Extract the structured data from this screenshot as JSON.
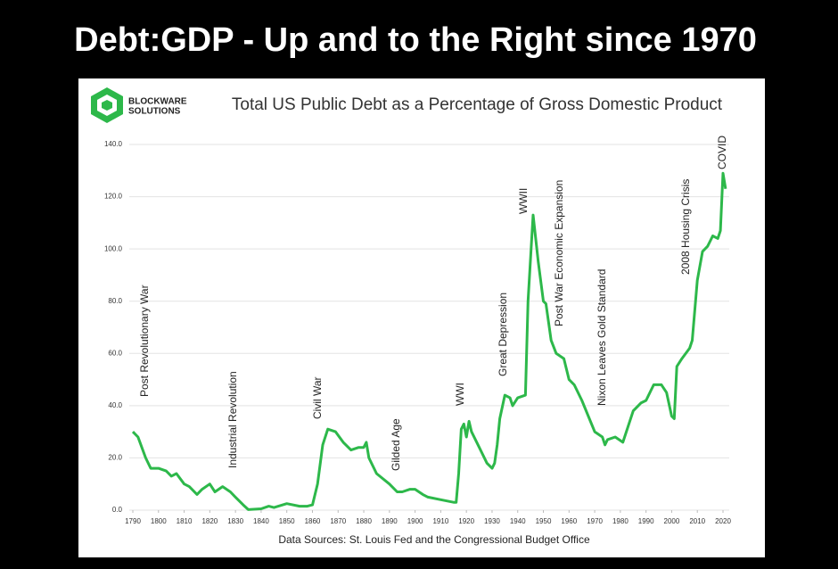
{
  "slide_title": "Debt:GDP - Up and to the Right since 1970",
  "logo": {
    "line1": "BLOCKWARE",
    "line2": "SOLUTIONS"
  },
  "chart_data": {
    "type": "line",
    "title": "Total US Public Debt as a Percentage of Gross Domestic Product",
    "source": "Data Sources: St. Louis Fed and the Congressional Budget Office",
    "color": "#2db84a",
    "grid": true,
    "x": [
      1790,
      1792,
      1795,
      1797,
      1800,
      1803,
      1805,
      1807,
      1810,
      1812,
      1815,
      1817,
      1820,
      1822,
      1825,
      1828,
      1830,
      1833,
      1835,
      1840,
      1843,
      1845,
      1850,
      1855,
      1858,
      1860,
      1862,
      1864,
      1866,
      1869,
      1872,
      1875,
      1878,
      1880,
      1881,
      1882,
      1885,
      1890,
      1893,
      1895,
      1898,
      1900,
      1903,
      1905,
      1910,
      1915,
      1916,
      1917,
      1918,
      1919,
      1920,
      1921,
      1922,
      1925,
      1928,
      1930,
      1931,
      1932,
      1933,
      1935,
      1937,
      1938,
      1940,
      1943,
      1944,
      1946,
      1948,
      1950,
      1951,
      1953,
      1955,
      1958,
      1960,
      1962,
      1965,
      1970,
      1973,
      1974,
      1975,
      1978,
      1981,
      1985,
      1988,
      1990,
      1993,
      1996,
      1998,
      2000,
      2001,
      2002,
      2004,
      2007,
      2008,
      2010,
      2012,
      2014,
      2016,
      2018,
      2019,
      2020,
      2021
    ],
    "values": [
      30,
      28,
      20,
      16,
      16,
      15,
      13,
      14,
      10,
      9,
      6,
      8,
      10,
      7,
      9,
      7,
      5,
      2,
      0.2,
      0.5,
      1.5,
      1,
      2.5,
      1.5,
      1.5,
      2,
      10,
      25,
      31,
      30,
      26,
      23,
      24,
      24,
      26,
      20,
      14,
      10,
      7,
      7,
      8,
      8,
      6,
      5,
      4,
      3,
      3,
      14,
      31,
      33,
      28,
      34,
      30,
      24,
      18,
      16,
      18,
      25,
      35,
      44,
      43,
      40,
      43,
      44,
      80,
      113,
      95,
      80,
      79,
      65,
      60,
      58,
      50,
      48,
      42,
      30,
      28,
      25,
      27,
      28,
      26,
      38,
      41,
      42,
      48,
      48,
      45,
      36,
      35,
      55,
      58,
      62,
      65,
      88,
      99,
      101,
      105,
      104,
      107,
      129,
      123
    ],
    "xlim": [
      1790,
      2020
    ],
    "xticks": [
      1790,
      1800,
      1810,
      1820,
      1830,
      1840,
      1850,
      1860,
      1870,
      1880,
      1890,
      1900,
      1910,
      1920,
      1930,
      1940,
      1950,
      1960,
      1970,
      1980,
      1990,
      2000,
      2010,
      2020
    ],
    "ylim": [
      0,
      140
    ],
    "yticks": [
      {
        "value": 0,
        "label": "0.0"
      },
      {
        "value": 20,
        "label": "20.0"
      },
      {
        "value": 40,
        "label": "40.0"
      },
      {
        "value": 60,
        "label": "60.0"
      },
      {
        "value": 80,
        "label": "80.0"
      },
      {
        "value": 100,
        "label": "100.0"
      },
      {
        "value": 120,
        "label": "120.0"
      },
      {
        "value": 140,
        "label": "140.0"
      }
    ],
    "annotations": [
      "Post Revolutionary War",
      "Industrial Revolution",
      "Civil War",
      "Gilded Age",
      "WWI",
      "Great Depression",
      "WWII",
      "Post War Economic Expansion",
      "Nixon Leaves Gold Standard",
      "2008 Housing Crisis",
      "COVID"
    ]
  }
}
